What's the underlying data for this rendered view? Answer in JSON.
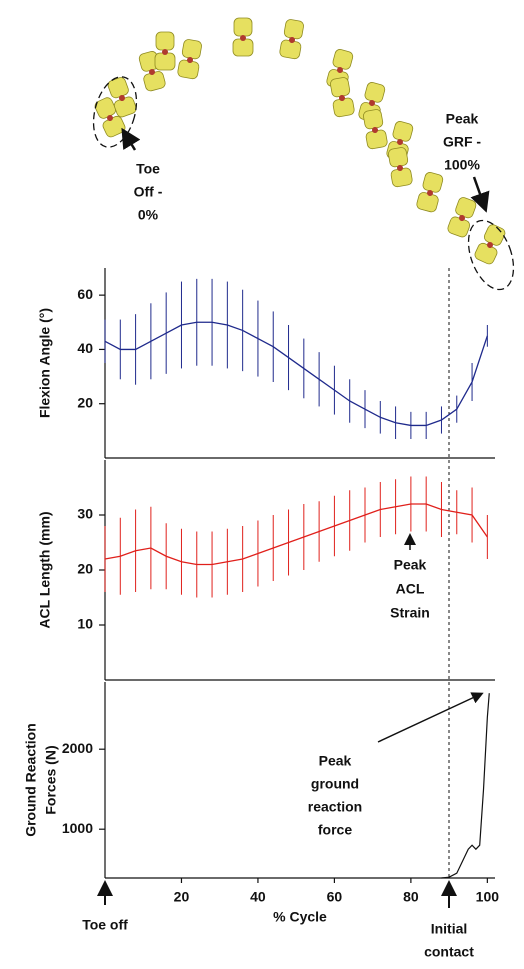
{
  "figure_labels": {
    "toe_off": [
      "Toe",
      "Off -",
      "0%"
    ],
    "peak_grf": [
      "Peak",
      "GRF -",
      "100%"
    ],
    "bottom_toe_off": "Toe off",
    "initial_contact": [
      "Initial",
      "contact"
    ]
  },
  "chart_data": [
    {
      "type": "errorbar",
      "ylabel": [
        "Flexion Angle (°)"
      ],
      "color": "#1f2a8c",
      "x": [
        0,
        4,
        8,
        12,
        16,
        20,
        24,
        28,
        32,
        36,
        40,
        44,
        48,
        52,
        56,
        60,
        64,
        68,
        72,
        76,
        80,
        84,
        88,
        92,
        96,
        100
      ],
      "values": [
        43,
        40,
        40,
        43,
        46,
        49,
        50,
        50,
        49,
        47,
        44,
        41,
        37,
        33,
        29,
        25,
        21,
        18,
        15,
        13,
        12,
        12,
        14,
        18,
        28,
        45
      ],
      "errors": [
        8,
        11,
        13,
        14,
        15,
        16,
        16,
        16,
        16,
        15,
        14,
        13,
        12,
        11,
        10,
        9,
        8,
        7,
        6,
        6,
        5,
        5,
        5,
        5,
        7,
        4
      ],
      "xlim": [
        0,
        102
      ],
      "ylim": [
        0,
        70
      ],
      "yticks": [
        20,
        40,
        60
      ]
    },
    {
      "type": "errorbar",
      "ylabel": [
        "ACL Length (mm)"
      ],
      "color": "#e0201b",
      "x": [
        0,
        4,
        8,
        12,
        16,
        20,
        24,
        28,
        32,
        36,
        40,
        44,
        48,
        52,
        56,
        60,
        64,
        68,
        72,
        76,
        80,
        84,
        88,
        92,
        96,
        100
      ],
      "values": [
        22,
        22.5,
        23.5,
        24,
        22.5,
        21.5,
        21,
        21,
        21.5,
        22,
        23,
        24,
        25,
        26,
        27,
        28,
        29,
        30,
        31,
        31.5,
        32,
        32,
        31,
        30.5,
        30,
        26
      ],
      "errors": [
        6,
        7,
        7.5,
        7.5,
        6,
        6,
        6,
        6,
        6,
        6,
        6,
        6,
        6,
        6,
        5.5,
        5.5,
        5.5,
        5,
        5,
        5,
        5,
        5,
        5,
        4,
        5,
        4
      ],
      "annotation": [
        "Peak",
        "ACL",
        "Strain"
      ],
      "xlim": [
        0,
        102
      ],
      "ylim": [
        0,
        40
      ],
      "yticks": [
        10,
        20,
        30
      ]
    },
    {
      "type": "line",
      "ylabel": [
        "Ground Reaction",
        "Forces (N)"
      ],
      "color": "#111111",
      "x": [
        88,
        90,
        92,
        93,
        94,
        95,
        96,
        97,
        98,
        99,
        100,
        100.5
      ],
      "values": [
        390,
        400,
        450,
        550,
        650,
        750,
        800,
        750,
        800,
        1500,
        2400,
        2700
      ],
      "annotation": [
        "Peak",
        "ground",
        "reaction",
        "force"
      ],
      "xlim": [
        0,
        102
      ],
      "ylim": [
        390,
        2840
      ],
      "yticks": [
        1000,
        2000
      ],
      "xticks": [
        20,
        40,
        60,
        80,
        100
      ],
      "xlabel": "% Cycle"
    }
  ]
}
